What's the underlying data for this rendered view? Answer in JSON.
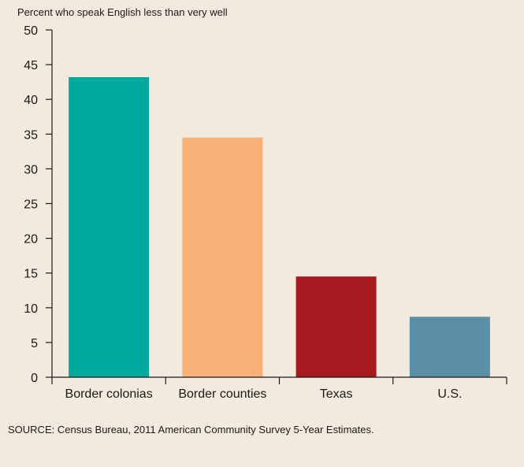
{
  "chart_data": {
    "type": "bar",
    "ylabel": "Percent who speak English less than very well",
    "xlabel": "",
    "categories": [
      "Border colonias",
      "Border counties",
      "Texas",
      "U.S."
    ],
    "values": [
      43.2,
      34.5,
      14.5,
      8.7
    ],
    "colors": [
      "#00a99d",
      "#f8b077",
      "#a7191e",
      "#5a8fa5"
    ],
    "ylim": [
      0,
      50
    ],
    "yticks": [
      0,
      5,
      10,
      15,
      20,
      25,
      30,
      35,
      40,
      45,
      50
    ],
    "grid": false,
    "legend": "none"
  },
  "source": "SOURCE: Census Bureau, 2011 American Community Survey 5-Year Estimates."
}
